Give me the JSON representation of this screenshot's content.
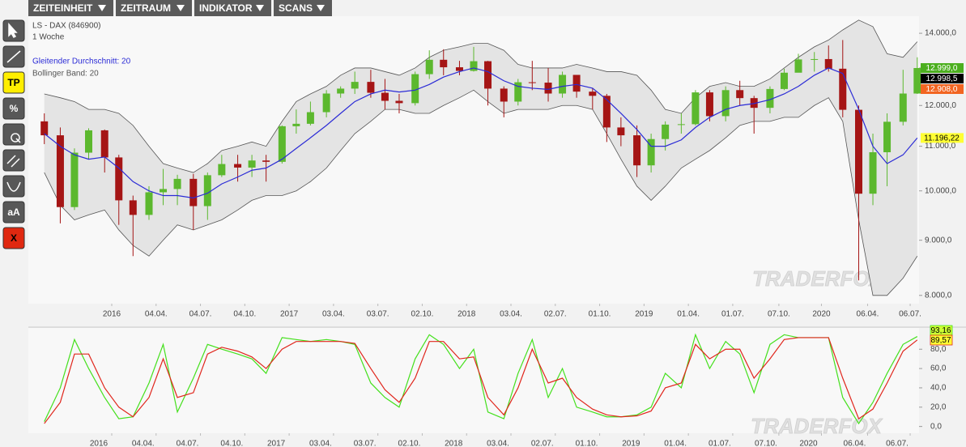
{
  "toolbar": {
    "menus": [
      "ZEITEINHEIT",
      "ZEITRAUM",
      "INDIKATOR",
      "SCANS"
    ],
    "tools": [
      "TP",
      "%",
      "aA",
      "X"
    ]
  },
  "watermark": "TRADERFOX",
  "chart_data": [
    {
      "type": "candlestick",
      "title": "LS - DAX (846900)",
      "subtitle": "1 Woche",
      "log": true,
      "x": [
        2015.62,
        2015.71,
        2015.79,
        2015.87,
        2015.96,
        2016.04,
        2016.12,
        2016.21,
        2016.29,
        2016.37,
        2016.46,
        2016.54,
        2016.62,
        2016.71,
        2016.79,
        2016.87,
        2016.96,
        2017.04,
        2017.12,
        2017.21,
        2017.29,
        2017.37,
        2017.46,
        2017.54,
        2017.62,
        2017.71,
        2017.79,
        2017.87,
        2017.96,
        2018.04,
        2018.12,
        2018.21,
        2018.29,
        2018.37,
        2018.46,
        2018.54,
        2018.62,
        2018.71,
        2018.79,
        2018.87,
        2018.96,
        2019.04,
        2019.12,
        2019.21,
        2019.29,
        2019.37,
        2019.46,
        2019.54,
        2019.62,
        2019.71,
        2019.79,
        2019.87,
        2019.96,
        2020.04,
        2020.12,
        2020.21,
        2020.29,
        2020.37,
        2020.46,
        2020.54
      ],
      "open": [
        11600,
        11260,
        9660,
        10850,
        11380,
        10740,
        9800,
        9500,
        9970,
        10040,
        10260,
        9680,
        10340,
        10590,
        10510,
        10670,
        10640,
        11480,
        11540,
        11830,
        12310,
        12440,
        12620,
        12330,
        12120,
        12060,
        12830,
        13230,
        13020,
        12920,
        13190,
        12440,
        12100,
        12610,
        12600,
        12310,
        12810,
        12360,
        12250,
        11450,
        11260,
        10560,
        11170,
        11520,
        11530,
        12340,
        11730,
        12400,
        12190,
        11940,
        12430,
        12870,
        13240,
        13250,
        12980,
        11890,
        9940,
        10860,
        11590,
        12310
      ],
      "high": [
        11800,
        11450,
        10950,
        11430,
        11400,
        10800,
        9900,
        10100,
        10480,
        10350,
        10370,
        10400,
        10800,
        10800,
        10800,
        10800,
        11500,
        11900,
        12100,
        12400,
        12500,
        12900,
        12950,
        12700,
        12300,
        12900,
        13500,
        13530,
        13200,
        13600,
        13200,
        12500,
        12700,
        13200,
        13000,
        12900,
        12800,
        12460,
        12300,
        11700,
        11500,
        11300,
        11600,
        11800,
        12400,
        12400,
        12500,
        12650,
        12250,
        12500,
        12980,
        13400,
        13450,
        13640,
        13800,
        12000,
        11300,
        11800,
        12950,
        13300
      ],
      "low": [
        11050,
        9330,
        9600,
        10700,
        10400,
        9300,
        8700,
        9400,
        9700,
        9700,
        9200,
        9400,
        10300,
        10200,
        10300,
        10200,
        10600,
        11300,
        11500,
        11700,
        12200,
        12300,
        12200,
        11900,
        11800,
        12000,
        12700,
        12800,
        12800,
        12900,
        12000,
        11700,
        12000,
        12400,
        12100,
        12200,
        12200,
        11900,
        11100,
        11000,
        10300,
        10400,
        10900,
        11300,
        11500,
        11600,
        11600,
        12000,
        11300,
        11800,
        12400,
        12900,
        12900,
        12900,
        11700,
        8260,
        9700,
        10100,
        11500,
        12300
      ],
      "close": [
        11260,
        9660,
        10850,
        11380,
        10740,
        9800,
        9500,
        9970,
        10040,
        10260,
        9680,
        10340,
        10590,
        10510,
        10670,
        10640,
        11480,
        11540,
        11830,
        12310,
        12440,
        12620,
        12330,
        12120,
        12060,
        12830,
        13230,
        13020,
        12920,
        13190,
        12440,
        12100,
        12610,
        12600,
        12310,
        12810,
        12360,
        12250,
        11450,
        11260,
        10560,
        11170,
        11520,
        11530,
        12340,
        11730,
        12400,
        12190,
        11940,
        12430,
        12870,
        13240,
        13250,
        12980,
        11890,
        9940,
        10860,
        11590,
        12310,
        12999
      ],
      "up_color": "#5cb82e",
      "down_color": "#a51515",
      "overlays": [
        {
          "name": "Gleitender Durchschnitt: 20",
          "color": "#2b2bd6",
          "values": [
            11300,
            11000,
            10800,
            10700,
            10750,
            10500,
            10200,
            10000,
            9900,
            9900,
            9850,
            9950,
            10150,
            10300,
            10450,
            10500,
            10700,
            10950,
            11200,
            11500,
            11800,
            12100,
            12300,
            12400,
            12350,
            12400,
            12550,
            12750,
            12900,
            13000,
            12900,
            12650,
            12500,
            12450,
            12420,
            12500,
            12550,
            12450,
            12150,
            11800,
            11400,
            11000,
            11000,
            11150,
            11450,
            11700,
            11900,
            12000,
            12050,
            12150,
            12300,
            12500,
            12800,
            13000,
            12850,
            11900,
            11000,
            10600,
            10800,
            11196.22
          ]
        },
        {
          "name": "Bollinger Band: 20",
          "color": "#555555",
          "fill": "#e4e4e4",
          "upper": [
            12300,
            12200,
            12100,
            11900,
            11900,
            11800,
            11500,
            11000,
            10600,
            10500,
            10400,
            10600,
            10900,
            11000,
            11100,
            11000,
            11600,
            12100,
            12300,
            12500,
            12800,
            13000,
            13000,
            12900,
            12800,
            13000,
            13300,
            13500,
            13600,
            13700,
            13700,
            13500,
            13100,
            13000,
            13000,
            13000,
            13100,
            13000,
            12900,
            12900,
            12800,
            12400,
            11900,
            11800,
            12200,
            12500,
            12600,
            12500,
            12500,
            12700,
            13000,
            13300,
            13600,
            13800,
            14100,
            14400,
            14200,
            13400,
            13300,
            13750
          ],
          "lower": [
            10400,
            9700,
            9400,
            9500,
            9600,
            9200,
            8900,
            8700,
            9000,
            9300,
            9200,
            9300,
            9400,
            9600,
            9800,
            9900,
            9900,
            10000,
            10200,
            10500,
            10900,
            11300,
            11600,
            11900,
            11900,
            11800,
            11800,
            12000,
            12200,
            12400,
            12100,
            11800,
            11900,
            11900,
            11900,
            12000,
            12000,
            11900,
            11300,
            10700,
            10100,
            9800,
            10100,
            10500,
            10700,
            10900,
            11200,
            11500,
            11600,
            11600,
            11700,
            11700,
            12000,
            12200,
            11600,
            9400,
            8000,
            8000,
            8300,
            8700
          ]
        }
      ],
      "last_values": [
        {
          "value": 12999,
          "label": "12.999,0",
          "color": "#4caf1f",
          "text_color": "#ffffff"
        },
        {
          "value": 12998.5,
          "label": "12.998,5",
          "color": "#000000",
          "text_color": "#ffffff"
        },
        {
          "value": 12908,
          "label": "12.908,0",
          "color": "#f26522",
          "text_color": "#ffffff"
        },
        {
          "value": 11196.22,
          "label": "11.196,22",
          "color": "#ffff33",
          "text_color": "#000000"
        }
      ],
      "xlim": [
        2015.53,
        2020.55
      ],
      "xticks": [
        2016,
        {
          "value": 2016.25,
          "label": "04.04."
        },
        {
          "value": 2016.5,
          "label": "04.07."
        },
        {
          "value": 2016.75,
          "label": "04.10."
        },
        2017,
        {
          "value": 2017.25,
          "label": "03.04."
        },
        {
          "value": 2017.5,
          "label": "03.07."
        },
        {
          "value": 2017.75,
          "label": "02.10."
        },
        2018,
        {
          "value": 2018.25,
          "label": "03.04."
        },
        {
          "value": 2018.5,
          "label": "02.07."
        },
        {
          "value": 2018.75,
          "label": "01.10."
        },
        2019,
        {
          "value": 2019.25,
          "label": "01.04."
        },
        {
          "value": 2019.5,
          "label": "01.07."
        },
        {
          "value": 2019.76,
          "label": "07.10."
        },
        2020,
        {
          "value": 2020.26,
          "label": "06.04."
        },
        {
          "value": 2020.5,
          "label": "06.07."
        }
      ],
      "ylim": [
        7860,
        14520
      ],
      "yticks": [
        {
          "value": 8000,
          "label": "8.000,0"
        },
        {
          "value": 9000,
          "label": "9.000,0"
        },
        {
          "value": 10000,
          "label": "10.000,0"
        },
        {
          "value": 11000,
          "label": "11.000,0"
        },
        {
          "value": 12000,
          "label": "12.000,0"
        },
        {
          "value": 13000,
          "label": "13.000,0"
        },
        {
          "value": 14000,
          "label": "14.000,0"
        }
      ]
    },
    {
      "type": "line",
      "x": [
        2015.62,
        2015.71,
        2015.79,
        2015.87,
        2015.96,
        2016.04,
        2016.12,
        2016.21,
        2016.29,
        2016.37,
        2016.46,
        2016.54,
        2016.62,
        2016.71,
        2016.79,
        2016.87,
        2016.96,
        2017.04,
        2017.12,
        2017.21,
        2017.29,
        2017.37,
        2017.46,
        2017.54,
        2017.62,
        2017.71,
        2017.79,
        2017.87,
        2017.96,
        2018.04,
        2018.12,
        2018.21,
        2018.29,
        2018.37,
        2018.46,
        2018.54,
        2018.62,
        2018.71,
        2018.79,
        2018.87,
        2018.96,
        2019.04,
        2019.12,
        2019.21,
        2019.29,
        2019.37,
        2019.46,
        2019.54,
        2019.62,
        2019.71,
        2019.79,
        2019.87,
        2019.96,
        2020.04,
        2020.12,
        2020.21,
        2020.29,
        2020.37,
        2020.46,
        2020.54
      ],
      "series": [
        {
          "color": "#44e01c",
          "values": [
            5,
            40,
            90,
            60,
            30,
            8,
            10,
            45,
            85,
            15,
            50,
            85,
            80,
            75,
            70,
            55,
            92,
            90,
            88,
            90,
            88,
            85,
            45,
            30,
            20,
            70,
            95,
            85,
            60,
            80,
            15,
            8,
            55,
            90,
            30,
            60,
            20,
            15,
            10,
            10,
            12,
            20,
            55,
            40,
            95,
            60,
            88,
            75,
            35,
            85,
            95,
            92,
            92,
            92,
            30,
            3,
            25,
            55,
            85,
            93.16
          ],
          "last_label": "93,16",
          "tag_color": "#ccff33"
        },
        {
          "color": "#e0261c",
          "values": [
            3,
            25,
            75,
            75,
            40,
            20,
            10,
            30,
            70,
            30,
            35,
            75,
            82,
            78,
            72,
            60,
            80,
            88,
            88,
            88,
            88,
            86,
            60,
            38,
            25,
            50,
            88,
            88,
            70,
            72,
            30,
            12,
            40,
            80,
            45,
            50,
            30,
            18,
            12,
            10,
            11,
            16,
            40,
            45,
            85,
            70,
            80,
            80,
            50,
            70,
            90,
            92,
            92,
            92,
            50,
            8,
            18,
            45,
            78,
            89.57
          ],
          "last_label": "89,57",
          "tag_color": "#ffff33"
        }
      ],
      "xlim": [
        2015.53,
        2020.55
      ],
      "xticks": [
        2016,
        {
          "value": 2016.25,
          "label": "04.04."
        },
        {
          "value": 2016.5,
          "label": "04.07."
        },
        {
          "value": 2016.75,
          "label": "04.10."
        },
        2017,
        {
          "value": 2017.25,
          "label": "03.04."
        },
        {
          "value": 2017.5,
          "label": "03.07."
        },
        {
          "value": 2017.75,
          "label": "02.10."
        },
        2018,
        {
          "value": 2018.25,
          "label": "03.04."
        },
        {
          "value": 2018.5,
          "label": "02.07."
        },
        {
          "value": 2018.75,
          "label": "01.10."
        },
        2019,
        {
          "value": 2019.25,
          "label": "01.04."
        },
        {
          "value": 2019.5,
          "label": "01.07."
        },
        {
          "value": 2019.76,
          "label": "07.10."
        },
        2020,
        {
          "value": 2020.26,
          "label": "06.04."
        },
        {
          "value": 2020.5,
          "label": "06.07."
        }
      ],
      "ylim": [
        -7,
        102
      ],
      "yticks": [
        {
          "value": 0,
          "label": "0,0"
        },
        {
          "value": 20,
          "label": "20,0"
        },
        {
          "value": 40,
          "label": "40,0"
        },
        {
          "value": 60,
          "label": "60,0"
        },
        {
          "value": 80,
          "label": "80,0"
        }
      ]
    }
  ]
}
